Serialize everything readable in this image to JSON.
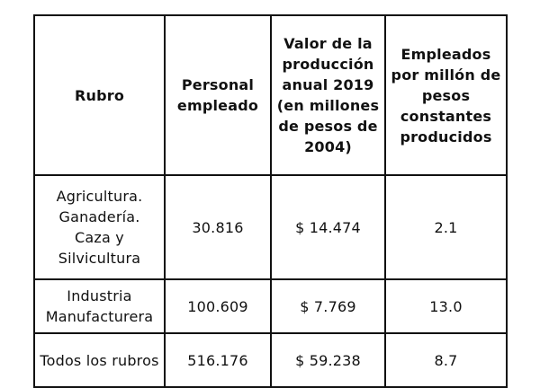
{
  "table": {
    "headers": [
      "Rubro",
      "Personal empleado",
      "Valor de la producción anual 2019 (en millones de pesos de 2004)",
      "Empleados por millón de pesos constantes producidos"
    ],
    "rows": [
      [
        "Agricultura. Ganadería. Caza y Silvicultura",
        "30.816",
        "$ 14.474",
        "2.1"
      ],
      [
        "Industria Manufacturera",
        "100.609",
        "$ 7.769",
        "13.0"
      ],
      [
        "Todos los rubros",
        "516.176",
        "$ 59.238",
        "8.7"
      ]
    ]
  }
}
